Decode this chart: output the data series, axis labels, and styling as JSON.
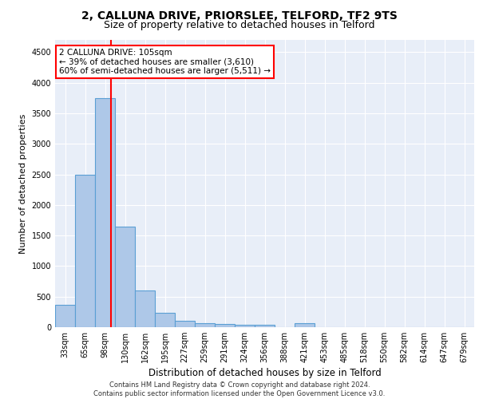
{
  "title1": "2, CALLUNA DRIVE, PRIORSLEE, TELFORD, TF2 9TS",
  "title2": "Size of property relative to detached houses in Telford",
  "xlabel": "Distribution of detached houses by size in Telford",
  "ylabel": "Number of detached properties",
  "bin_labels": [
    "33sqm",
    "65sqm",
    "98sqm",
    "130sqm",
    "162sqm",
    "195sqm",
    "227sqm",
    "259sqm",
    "291sqm",
    "324sqm",
    "356sqm",
    "388sqm",
    "421sqm",
    "453sqm",
    "485sqm",
    "518sqm",
    "550sqm",
    "582sqm",
    "614sqm",
    "647sqm",
    "679sqm"
  ],
  "bar_values": [
    370,
    2500,
    3750,
    1650,
    600,
    230,
    110,
    70,
    50,
    40,
    40,
    0,
    60,
    0,
    0,
    0,
    0,
    0,
    0,
    0,
    0
  ],
  "bar_color": "#aec8e8",
  "bar_edgecolor": "#5a9fd4",
  "bar_linewidth": 0.8,
  "redline_x": 2.3,
  "annotation_text": "2 CALLUNA DRIVE: 105sqm\n← 39% of detached houses are smaller (3,610)\n60% of semi-detached houses are larger (5,511) →",
  "annotation_box_color": "white",
  "annotation_box_edgecolor": "red",
  "ylim": [
    0,
    4700
  ],
  "yticks": [
    0,
    500,
    1000,
    1500,
    2000,
    2500,
    3000,
    3500,
    4000,
    4500
  ],
  "background_color": "#e8eef8",
  "grid_color": "#ffffff",
  "footer": "Contains HM Land Registry data © Crown copyright and database right 2024.\nContains public sector information licensed under the Open Government Licence v3.0.",
  "title1_fontsize": 10,
  "title2_fontsize": 9,
  "xlabel_fontsize": 8.5,
  "ylabel_fontsize": 8,
  "tick_fontsize": 7,
  "ann_fontsize": 7.5
}
